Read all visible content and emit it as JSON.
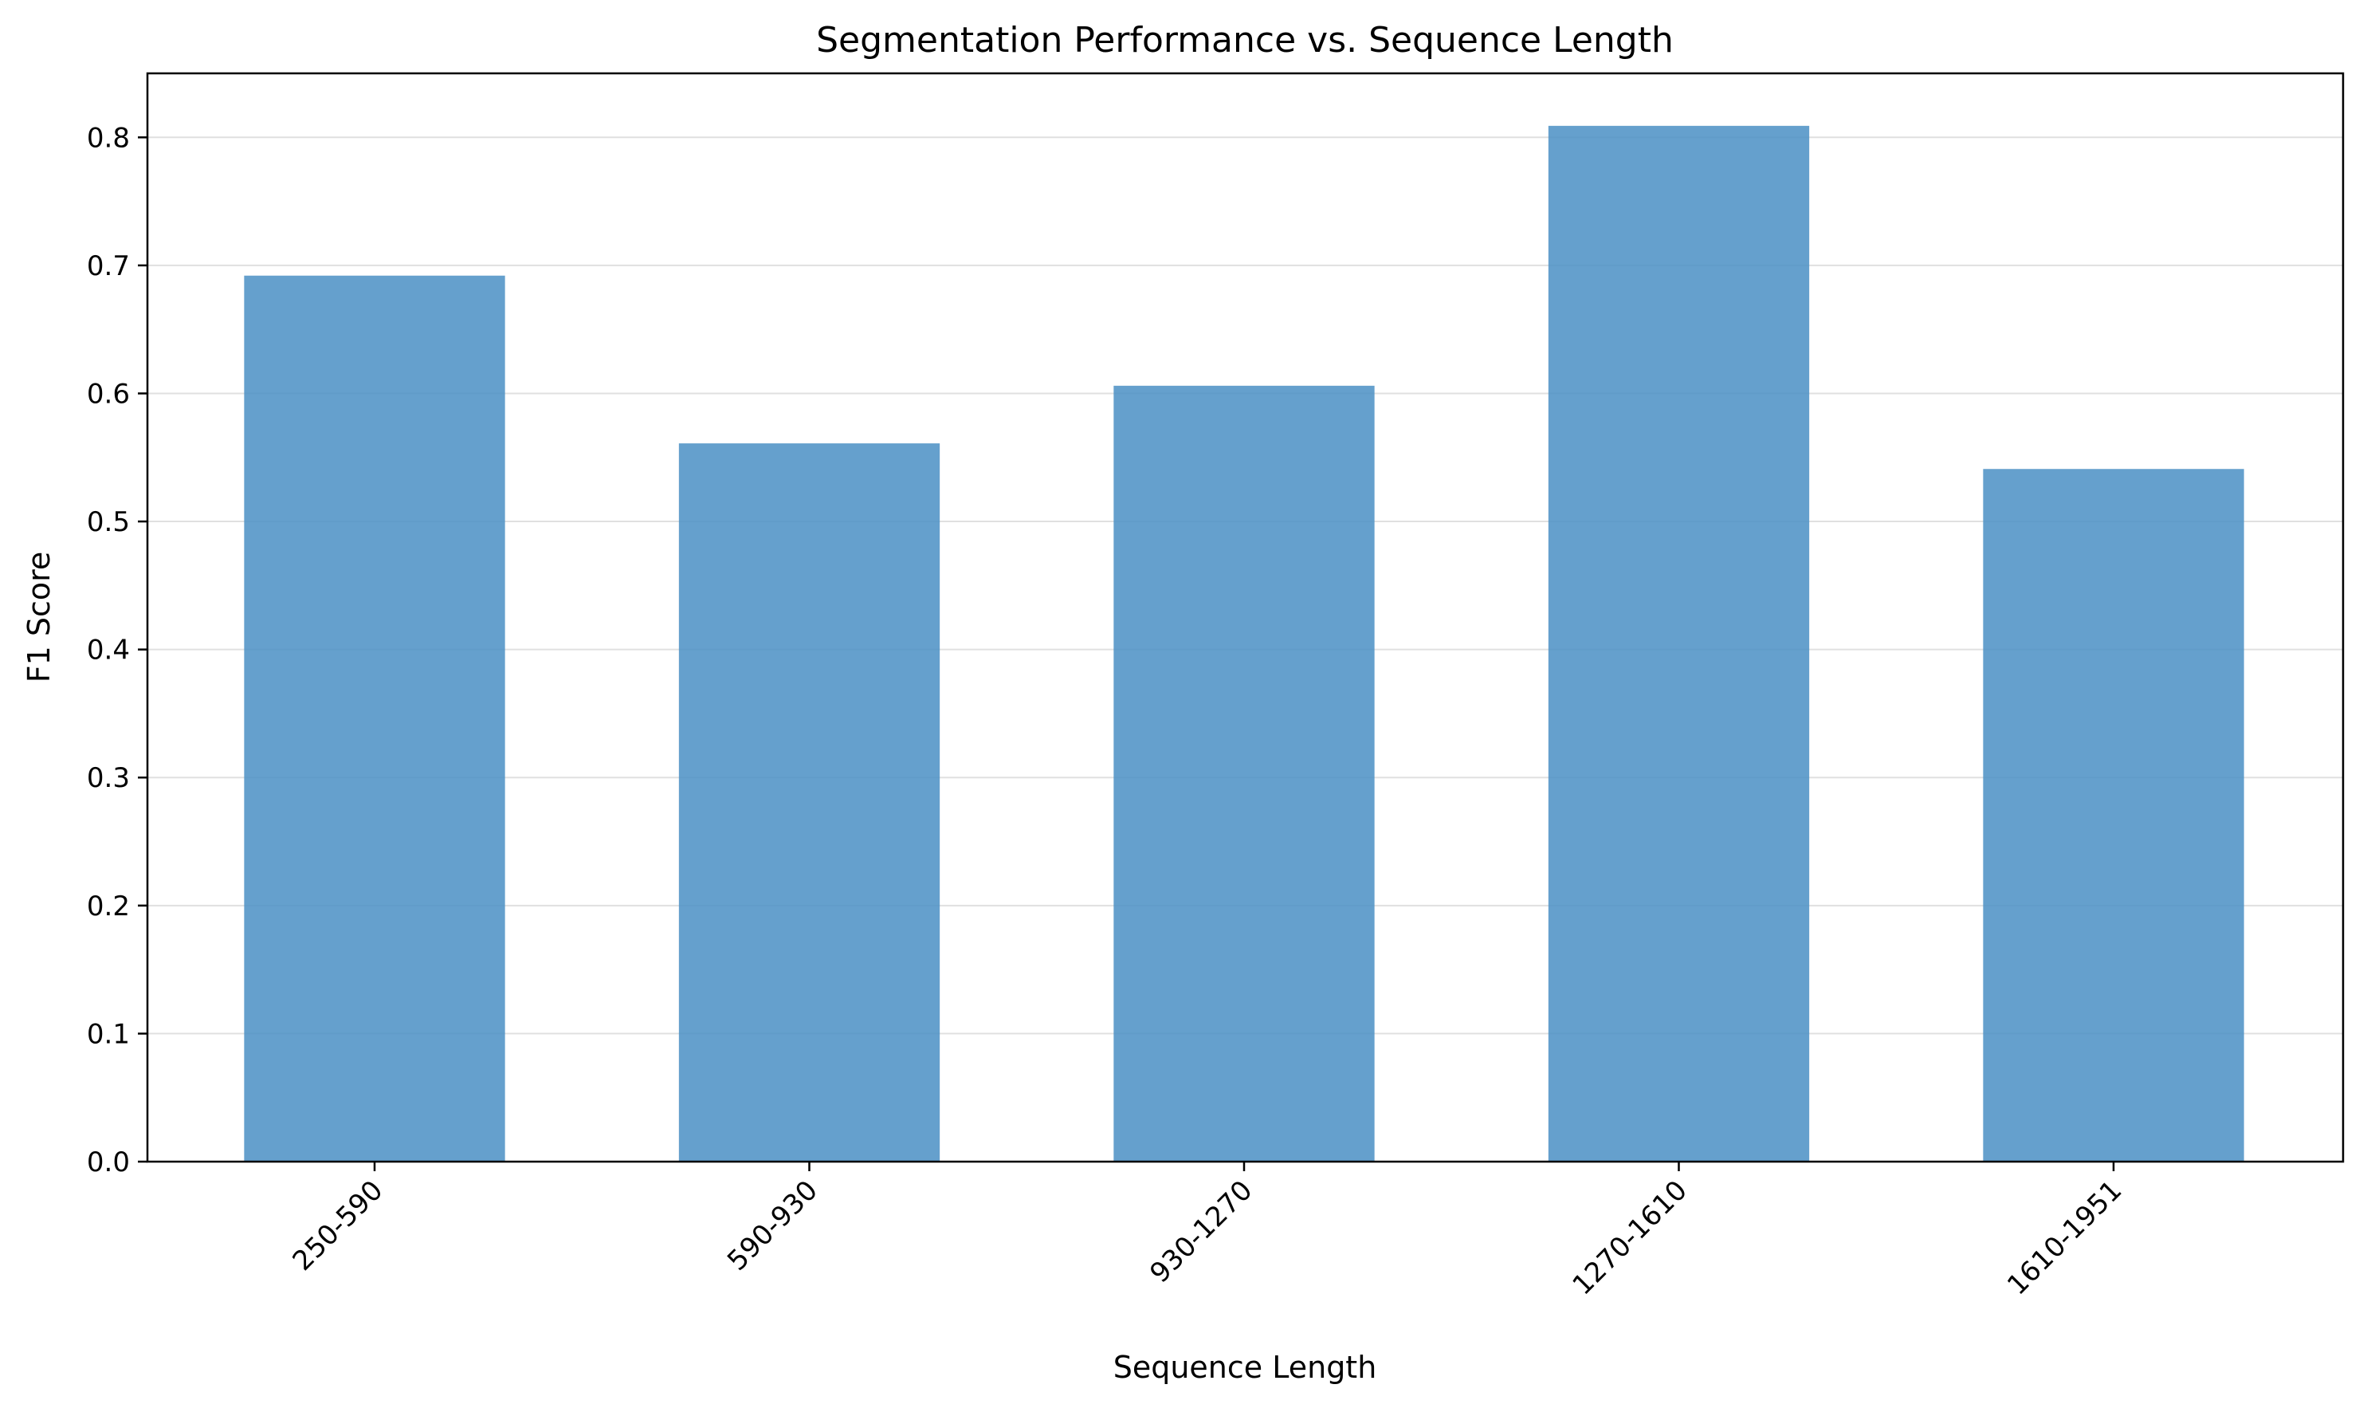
{
  "chart_data": {
    "type": "bar",
    "title": "Segmentation Performance vs. Sequence Length",
    "xlabel": "Sequence Length",
    "ylabel": "F1 Score",
    "categories": [
      "250-590",
      "590-930",
      "930-1270",
      "1270-1610",
      "1610-1951"
    ],
    "values": [
      0.692,
      0.561,
      0.606,
      0.809,
      0.541
    ],
    "ylim": [
      0,
      0.85
    ],
    "yticks": [
      0.0,
      0.1,
      0.2,
      0.3,
      0.4,
      0.5,
      0.6,
      0.7,
      0.8
    ],
    "ytick_labels": [
      "0.0",
      "0.1",
      "0.2",
      "0.3",
      "0.4",
      "0.5",
      "0.6",
      "0.7",
      "0.8"
    ],
    "grid": "horizontal",
    "bar_color": "#4a8fc4",
    "bar_opacity": 0.85,
    "xtick_rotation": 45
  }
}
